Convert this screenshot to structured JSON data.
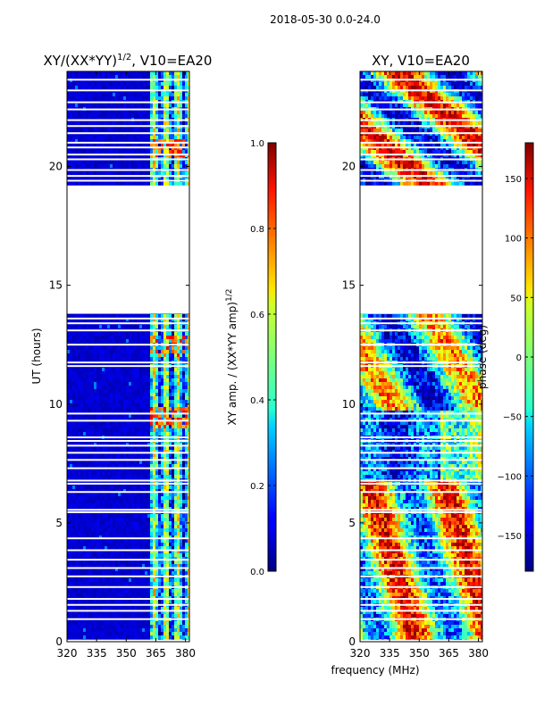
{
  "suptitle": "2018-05-30 0.0-24.0",
  "shared_xlabel": "frequency (MHz)",
  "chart_data": [
    {
      "type": "heatmap",
      "title_main": "XY/(XX*YY)",
      "title_sup": "1/2",
      "title_tail": ", V10=EA20",
      "ylabel": "UT (hours)",
      "xlim": [
        320,
        382
      ],
      "ylim": [
        0,
        24
      ],
      "xticks": [
        320,
        335,
        350,
        365,
        380
      ],
      "yticks": [
        0,
        5,
        10,
        15,
        20
      ],
      "flagged_ut_ranges": [
        [
          13.8,
          19.2
        ]
      ],
      "colorbar": {
        "label_main": "XY amp. / (XX*YY amp)",
        "label_sup": "1/2",
        "range": [
          0.0,
          1.0
        ],
        "ticks": [
          "0.0",
          "0.2",
          "0.4",
          "0.6",
          "0.8",
          "1.0"
        ],
        "tick_values": [
          0.0,
          0.2,
          0.4,
          0.6,
          0.8,
          1.0
        ],
        "colormap": "jet"
      }
    },
    {
      "type": "heatmap",
      "title": "XY, V10=EA20",
      "xlim": [
        320,
        382
      ],
      "ylim": [
        0,
        24
      ],
      "xticks": [
        320,
        335,
        350,
        365,
        380
      ],
      "yticks": [
        0,
        5,
        10,
        15,
        20
      ],
      "flagged_ut_ranges": [
        [
          13.8,
          19.2
        ]
      ],
      "colorbar": {
        "label": "phase (deg)",
        "range": [
          -180,
          180
        ],
        "ticks": [
          "−150",
          "−100",
          "−50",
          "0",
          "50",
          "100",
          "150"
        ],
        "tick_values": [
          -150,
          -100,
          -50,
          0,
          50,
          100,
          150
        ],
        "colormap": "jet"
      }
    }
  ]
}
